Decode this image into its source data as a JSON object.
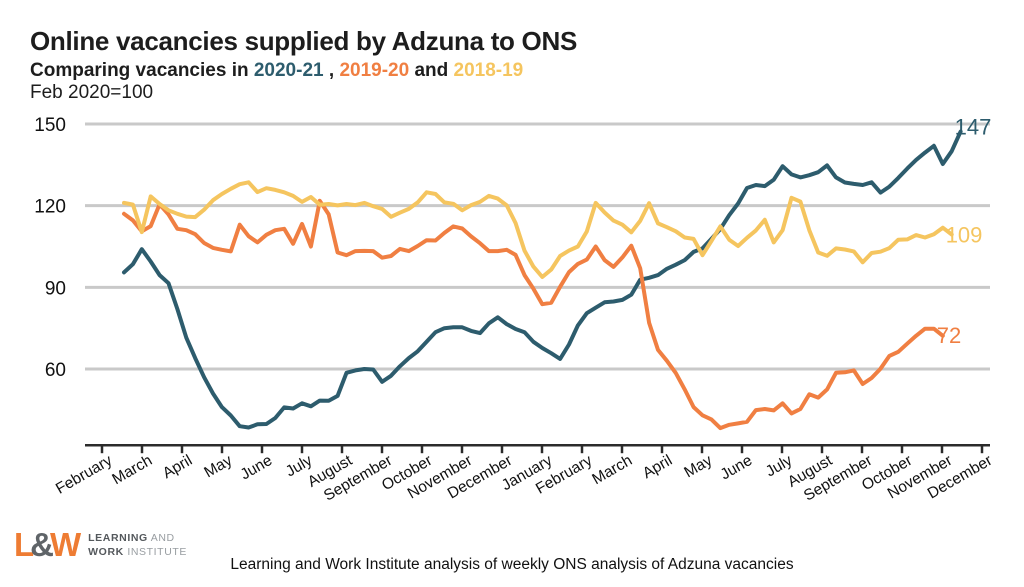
{
  "header": {
    "title": "Online vacancies supplied by Adzuna to ONS",
    "subtitle_prefix": "Comparing vacancies in ",
    "subtitle_sep1": " , ",
    "subtitle_sep2": "  and ",
    "baseline_note": "Feb 2020=100"
  },
  "chart_data": {
    "type": "line",
    "title": "Online vacancies supplied by Adzuna to ONS",
    "subtitle": "Comparing vacancies in 2020-21, 2019-20 and 2018-19",
    "index_note": "Feb 2020=100",
    "x_unit": "week",
    "xlabel": "",
    "ylabel": "",
    "ylim": [
      32,
      155
    ],
    "grid": true,
    "y_ticks": [
      150,
      120,
      90,
      60
    ],
    "x_tick_labels": [
      "February",
      "March",
      "April",
      "May",
      "June",
      "July",
      "August",
      "September",
      "October",
      "November",
      "December",
      "January",
      "February",
      "March",
      "April",
      "May",
      "June",
      "July",
      "August",
      "September",
      "October",
      "November",
      "December"
    ],
    "series": [
      {
        "name": "2020-21",
        "color": "#2d5c6d",
        "end_label": "147",
        "values": [
          95.5,
          98.5,
          104,
          99.5,
          94.5,
          91.5,
          82,
          71.5,
          64,
          57,
          51,
          46,
          42.9,
          39,
          38.5,
          39.7,
          39.8,
          42,
          45.9,
          45.5,
          47.4,
          46.3,
          48.4,
          48.3,
          50.1,
          58.6,
          59.5,
          60,
          59.8,
          55.3,
          57.5,
          61,
          64,
          66.5,
          70,
          73.5,
          75,
          75.3,
          75.3,
          74,
          73.2,
          76.8,
          79,
          76.5,
          74.7,
          73.5,
          70,
          67.7,
          65.8,
          63.7,
          69,
          76,
          80.5,
          82.5,
          84.5,
          84.8,
          85.4,
          87.3,
          92.8,
          93.5,
          94.5,
          96.8,
          98.3,
          100,
          103,
          104.3,
          107.8,
          111.4,
          116.5,
          120.8,
          126.5,
          127.6,
          127.2,
          129.5,
          134.5,
          131.5,
          130.4,
          131.2,
          132.3,
          134.8,
          130.4,
          128.5,
          128,
          127.6,
          128.6,
          124.8,
          127,
          130.2,
          133.6,
          136.8,
          139.5,
          142,
          135.3,
          140,
          147.2
        ]
      },
      {
        "name": "2019-20",
        "color": "#f07f42",
        "end_label": "72",
        "values": [
          117,
          114.6,
          110.6,
          112.5,
          120.5,
          116.8,
          111.5,
          111,
          109.5,
          106.3,
          104.5,
          103.8,
          103.2,
          113,
          108.8,
          106.5,
          109.3,
          111,
          111.5,
          106,
          113.3,
          105,
          121.8,
          116.8,
          102.8,
          101.8,
          103.3,
          103.4,
          103.3,
          100.9,
          101.5,
          104.1,
          103.3,
          105.2,
          107.3,
          107.2,
          110,
          112.4,
          111.6,
          108.7,
          106.2,
          103.3,
          103.3,
          103.8,
          101.9,
          94.5,
          89.5,
          83.8,
          84.3,
          90.2,
          95.6,
          98.6,
          100.2,
          105,
          100,
          97.5,
          101,
          105.3,
          97,
          77,
          67,
          63,
          58.5,
          52.5,
          46,
          43,
          41.5,
          38.3,
          39.5,
          40,
          40.6,
          44.9,
          45.3,
          44.8,
          47.4,
          43.7,
          45.3,
          50.7,
          49.5,
          52.5,
          58.6,
          58.8,
          59.5,
          54.5,
          56.7,
          60.1,
          64.8,
          66.3,
          69.3,
          72.2,
          74.8,
          74.8,
          72.2
        ]
      },
      {
        "name": "2018-19",
        "color": "#f5c55f",
        "end_label": "109",
        "values": [
          121,
          120.4,
          110.3,
          123.4,
          120.6,
          118.3,
          117,
          116,
          115.8,
          118.5,
          122,
          124.3,
          126.2,
          127.9,
          128.6,
          125,
          126.4,
          125.8,
          124.9,
          123.6,
          121.4,
          123.2,
          120.3,
          120.6,
          120.1,
          120.6,
          120.2,
          121,
          119.8,
          118.8,
          115.9,
          117.4,
          118.8,
          121.2,
          124.9,
          124.3,
          121.2,
          120.7,
          118.3,
          120.2,
          121.4,
          123.6,
          122.6,
          120.1,
          113.6,
          103.5,
          97.6,
          93.8,
          96.5,
          101.5,
          103.5,
          105,
          110.5,
          121,
          117.5,
          114.5,
          113,
          110.2,
          114.4,
          120.9,
          113.5,
          112.1,
          110.6,
          108.3,
          107.8,
          101.8,
          107,
          112.4,
          107.5,
          105.2,
          108.2,
          110.9,
          114.8,
          106.5,
          111,
          122.9,
          121.5,
          111,
          102.8,
          101.6,
          104.3,
          103.9,
          103.2,
          99.2,
          102.6,
          103.1,
          104.4,
          107.5,
          107.6,
          109.2,
          108.3,
          109.5,
          111.9,
          109.4
        ]
      }
    ],
    "legend_position": "in-subtitle",
    "axis_color": "#2b2b2b",
    "gridline_color": "#c9c9c9"
  },
  "footer": {
    "logo": {
      "l": "L",
      "amp": "&",
      "w": "W",
      "line1_bold": "LEARNING",
      "line1_rest": " AND",
      "line2_bold": "WORK",
      "line2_rest": " INSTITUTE"
    },
    "caption": "Learning and Work Institute analysis of weekly ONS analysis of Adzuna vacancies"
  }
}
